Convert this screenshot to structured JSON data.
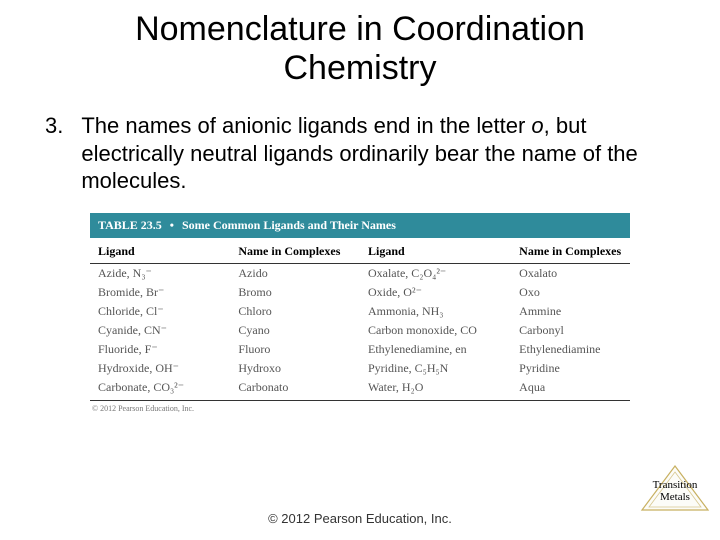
{
  "title_line1": "Nomenclature in Coordination",
  "title_line2": "Chemistry",
  "list_number": "3.",
  "body_pre": "The names of anionic ligands end in the letter ",
  "body_italic": "o",
  "body_post": ", but electrically neutral ligands ordinarily bear the name of the molecules.",
  "table": {
    "header_label": "TABLE 23.5",
    "header_dot": "•",
    "header_title": "Some Common Ligands and Their Names",
    "header_bg": "#2f8b9b",
    "header_text_color": "#ffffff",
    "columns": [
      "Ligand",
      "Name in Complexes",
      "Ligand",
      "Name in Complexes"
    ],
    "rows": [
      {
        "l1": "Azide, N₃⁻",
        "n1": "Azido",
        "l2": "Oxalate, C₂O₄²⁻",
        "n2": "Oxalato"
      },
      {
        "l1": "Bromide, Br⁻",
        "n1": "Bromo",
        "l2": "Oxide, O²⁻",
        "n2": "Oxo"
      },
      {
        "l1": "Chloride, Cl⁻",
        "n1": "Chloro",
        "l2": "Ammonia, NH₃",
        "n2": "Ammine"
      },
      {
        "l1": "Cyanide, CN⁻",
        "n1": "Cyano",
        "l2": "Carbon monoxide, CO",
        "n2": "Carbonyl"
      },
      {
        "l1": "Fluoride, F⁻",
        "n1": "Fluoro",
        "l2": "Ethylenediamine, en",
        "n2": "Ethylenediamine"
      },
      {
        "l1": "Hydroxide, OH⁻",
        "n1": "Hydroxo",
        "l2": "Pyridine, C₅H₅N",
        "n2": "Pyridine"
      },
      {
        "l1": "Carbonate, CO₃²⁻",
        "n1": "Carbonato",
        "l2": "Water, H₂O",
        "n2": "Aqua"
      }
    ],
    "small_copy": "© 2012 Pearson Education, Inc."
  },
  "footer": "© 2012 Pearson Education, Inc.",
  "badge": {
    "line1": "Transition",
    "line2": "Metals",
    "stroke": "#c8b060",
    "fill": "#fcfcf8"
  }
}
